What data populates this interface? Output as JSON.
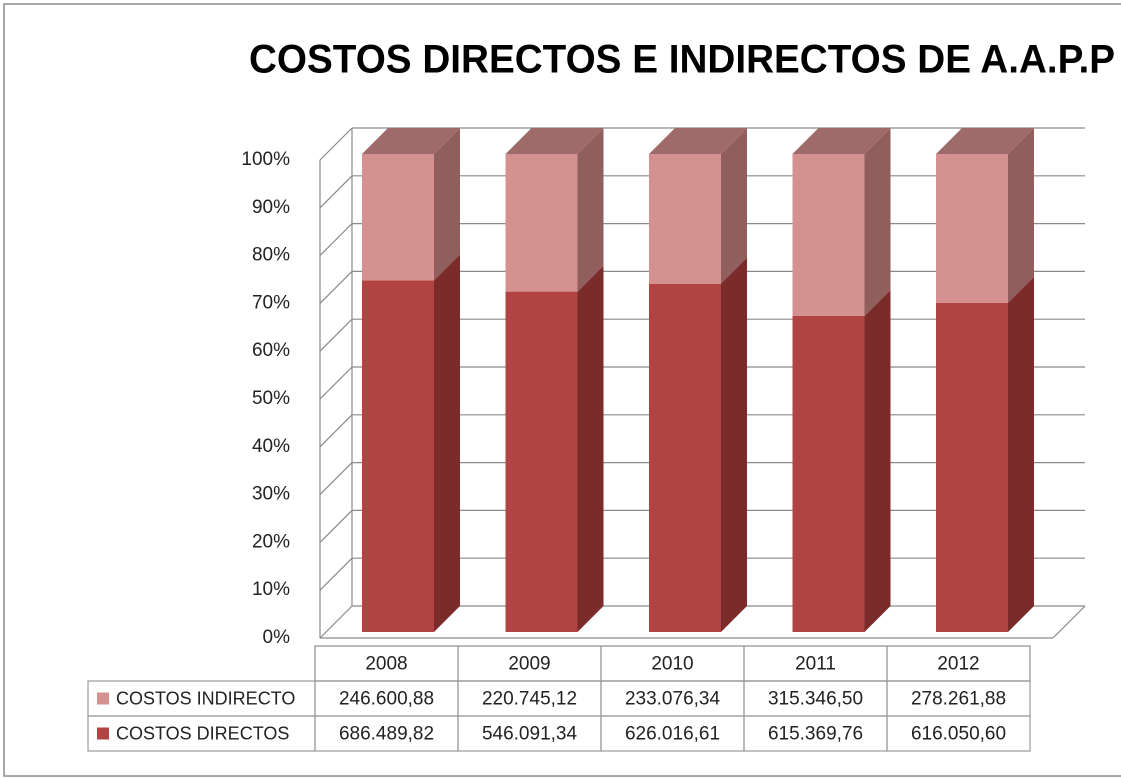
{
  "chart_data": {
    "type": "stacked_bar_100",
    "title": "COSTOS DIRECTOS E INDIRECTOS DE A.A.P.P",
    "categories": [
      "2008",
      "2009",
      "2010",
      "2011",
      "2012"
    ],
    "series": [
      {
        "name": "COSTOS INDIRECTO",
        "color": "#d4918f",
        "side_color": "#8f5e5d",
        "values": [
          246600.88,
          220745.12,
          233076.34,
          315346.5,
          278261.88
        ],
        "value_labels": [
          "246.600,88",
          "220.745,12",
          "233.076,34",
          "315.346,50",
          "278.261,88"
        ]
      },
      {
        "name": "COSTOS DIRECTOS",
        "color": "#b14442",
        "side_color": "#7b2b29",
        "values": [
          686489.82,
          546091.34,
          626016.61,
          615369.76,
          616050.6
        ],
        "value_labels": [
          "686.489,82",
          "546.091,34",
          "626.016,61",
          "615.369,76",
          "616.050,60"
        ]
      }
    ],
    "top_color": "#9e6b6a",
    "ylim": [
      0,
      100
    ],
    "yticks": [
      {
        "value": 0,
        "label": "0%"
      },
      {
        "value": 10,
        "label": "10%"
      },
      {
        "value": 20,
        "label": "20%"
      },
      {
        "value": 30,
        "label": "30%"
      },
      {
        "value": 40,
        "label": "40%"
      },
      {
        "value": 50,
        "label": "50%"
      },
      {
        "value": 60,
        "label": "60%"
      },
      {
        "value": 70,
        "label": "70%"
      },
      {
        "value": 80,
        "label": "80%"
      },
      {
        "value": 90,
        "label": "90%"
      },
      {
        "value": 100,
        "label": "100%"
      }
    ],
    "grid": true
  }
}
